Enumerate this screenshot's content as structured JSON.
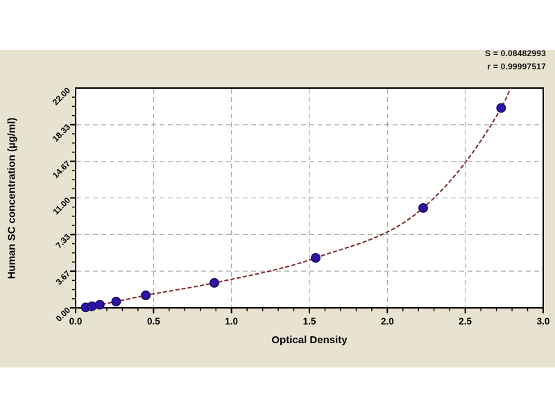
{
  "page": {
    "background": "#ffffff",
    "panel_background": "#e8e3d1"
  },
  "chart_data": {
    "type": "scatter",
    "title": "",
    "xlabel": "Optical Density",
    "ylabel": "Human SC concentration (µg/ml)",
    "xlim": [
      0.0,
      3.0
    ],
    "ylim": [
      0.0,
      22.0
    ],
    "x_major_ticks": [
      0.0,
      0.5,
      1.0,
      1.5,
      2.0,
      2.5,
      3.0
    ],
    "x_tick_labels": [
      "0.0",
      "0.5",
      "1.0",
      "1.5",
      "2.0",
      "2.5",
      "3.0"
    ],
    "x_minor_step": 0.1,
    "y_major_ticks": [
      0.0,
      3.667,
      7.333,
      11.0,
      14.667,
      18.333,
      22.0
    ],
    "y_tick_labels": [
      "0.00",
      "3.67",
      "7.33",
      "11.00",
      "14.67",
      "18.33",
      "22.00"
    ],
    "y_minor_per_major": 4,
    "grid": true,
    "legend": null,
    "fit": {
      "s_label": "S = 0.08482993",
      "r_label": "r = 0.99997517"
    },
    "series": [
      {
        "name": "standard-points",
        "type": "scatter",
        "points": [
          [
            0.065,
            0.05
          ],
          [
            0.105,
            0.16
          ],
          [
            0.155,
            0.31
          ],
          [
            0.26,
            0.63
          ],
          [
            0.45,
            1.25
          ],
          [
            0.89,
            2.5
          ],
          [
            1.54,
            5.0
          ],
          [
            2.23,
            10.0
          ],
          [
            2.73,
            20.0
          ]
        ]
      },
      {
        "name": "fit-curve",
        "type": "line",
        "control_points": [
          [
            0.05,
            0.0
          ],
          [
            0.105,
            0.16
          ],
          [
            0.155,
            0.31
          ],
          [
            0.26,
            0.63
          ],
          [
            0.45,
            1.25
          ],
          [
            0.89,
            2.5
          ],
          [
            1.54,
            5.0
          ],
          [
            2.23,
            10.0
          ],
          [
            2.73,
            20.0
          ],
          [
            2.86,
            24.5
          ]
        ]
      }
    ],
    "colors": {
      "point": "#2d14a5",
      "point_stroke": "#180a63",
      "curve": "#7b2a2a",
      "grid": "#979797",
      "frame": "#000000",
      "plot_background": "#ffffff",
      "panel_background": "#e8e3d1",
      "text": "#000000"
    }
  }
}
